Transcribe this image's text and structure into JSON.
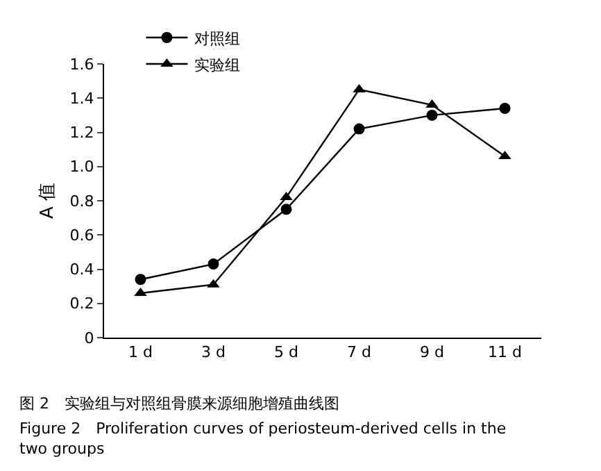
{
  "chart_data": {
    "type": "line",
    "ylabel": "A 值",
    "categories": [
      "1 d",
      "3 d",
      "5 d",
      "7 d",
      "9 d",
      "11 d"
    ],
    "series": [
      {
        "name": "对照组",
        "color": "#000000",
        "marker": "circle",
        "values": [
          0.34,
          0.43,
          0.75,
          1.22,
          1.3,
          1.34
        ]
      },
      {
        "name": "实验组",
        "color": "#000000",
        "marker": "triangle",
        "values": [
          0.26,
          0.31,
          0.82,
          1.45,
          1.36,
          1.06
        ]
      }
    ],
    "ylim": [
      0,
      1.6
    ],
    "yticks": [
      0,
      0.2,
      0.4,
      0.6,
      0.8,
      {
        "value": 1.0,
        "label": "1.0"
      },
      1.2,
      1.4,
      1.6
    ],
    "legend": "top left",
    "line_style": "solid",
    "annotations": [
      "图 2　实验组与对照组骨膜来源细胞增殖曲线图",
      "Figure 2　Proliferation curves of periosteum-derived cells in the\ntwo groups"
    ]
  }
}
